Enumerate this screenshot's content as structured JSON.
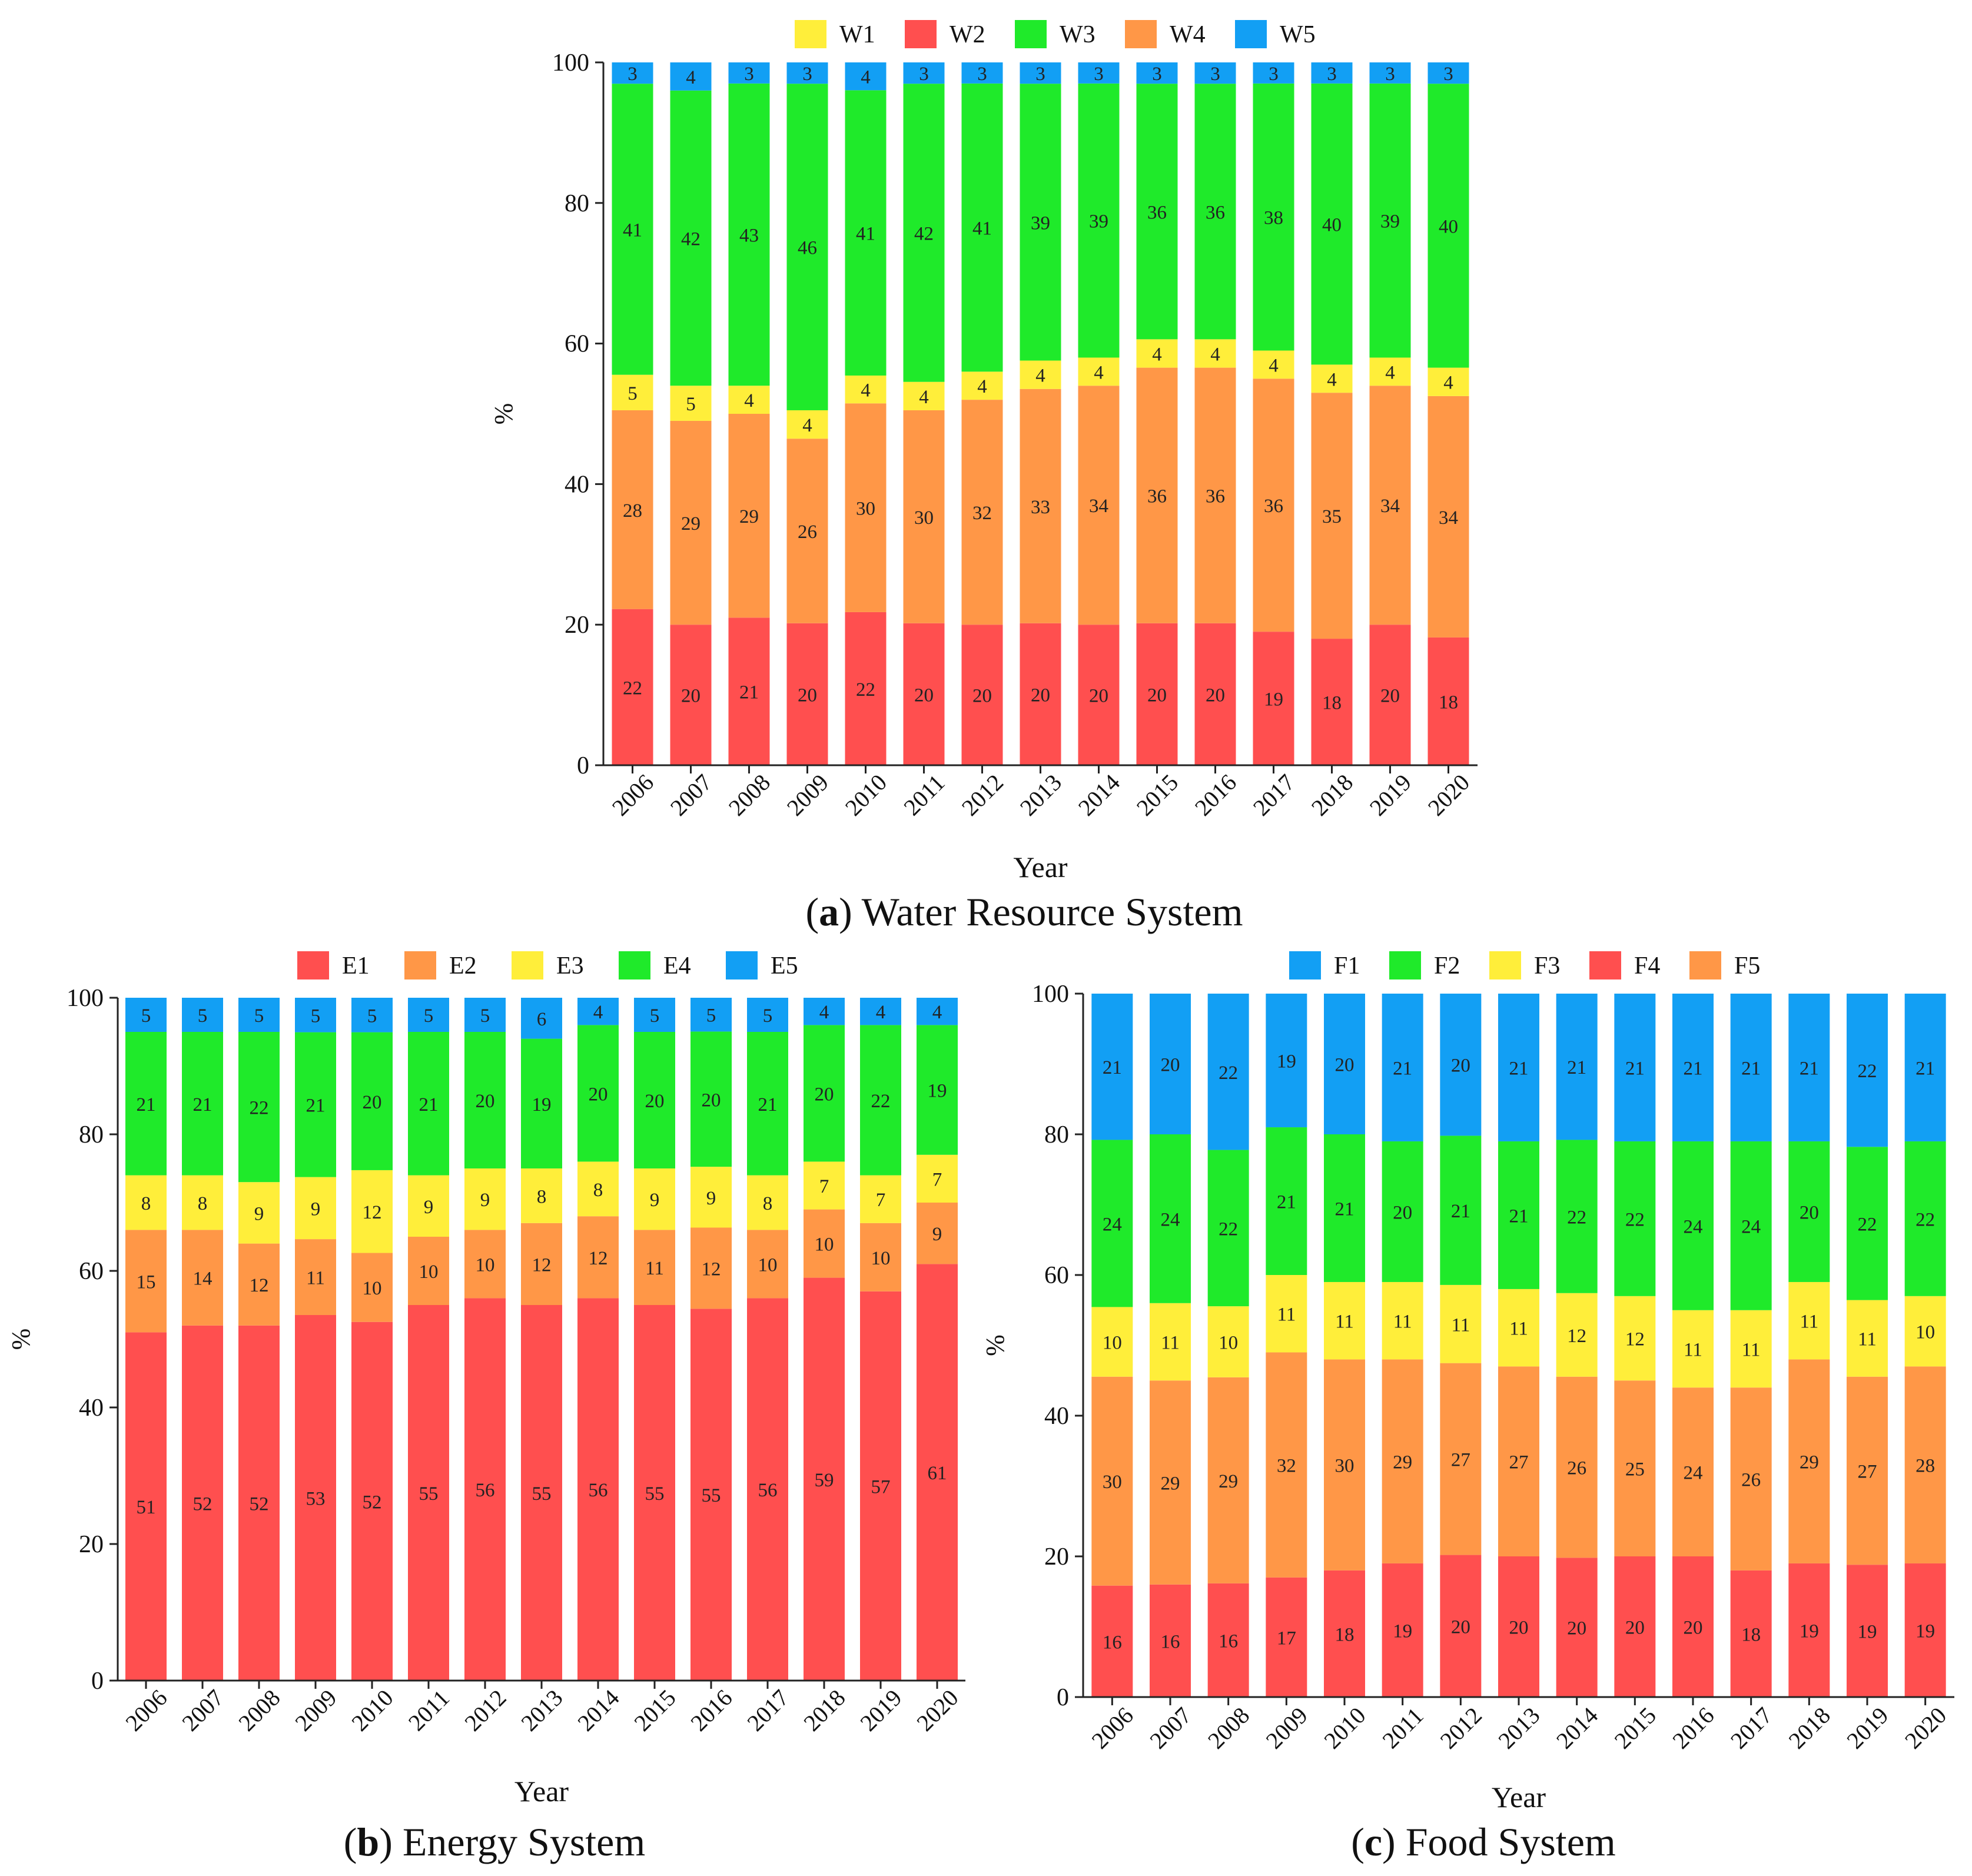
{
  "colors": {
    "red": "#FF4F4F",
    "orange": "#FF9747",
    "yellow": "#FFEE3A",
    "green": "#1FEA2A",
    "blue": "#129FF4"
  },
  "captions": {
    "a": {
      "letter": "a",
      "text": " Water Resource System"
    },
    "b": {
      "letter": "b",
      "text": " Energy System"
    },
    "c": {
      "letter": "c",
      "text": " Food System"
    }
  },
  "chart_data": [
    {
      "type": "bar",
      "stacked": true,
      "title": "(a) Water Resource System",
      "xlabel": "Year",
      "ylabel": "%",
      "ylim": [
        0,
        100
      ],
      "yticks": [
        0,
        20,
        40,
        60,
        80,
        100
      ],
      "categories": [
        "2006",
        "2007",
        "2008",
        "2009",
        "2010",
        "2011",
        "2012",
        "2013",
        "2014",
        "2015",
        "2016",
        "2017",
        "2018",
        "2019",
        "2020"
      ],
      "legend": [
        "W1",
        "W2",
        "W3",
        "W4",
        "W5"
      ],
      "legend_colors": [
        "#FFEE3A",
        "#FF4F4F",
        "#1FEA2A",
        "#FF9747",
        "#129FF4"
      ],
      "series": [
        {
          "name": "W2",
          "color": "#FF4F4F",
          "values": [
            22,
            20,
            21,
            20,
            22,
            20,
            20,
            20,
            20,
            20,
            20,
            19,
            18,
            20,
            18
          ]
        },
        {
          "name": "W4",
          "color": "#FF9747",
          "values": [
            28,
            29,
            29,
            26,
            30,
            30,
            32,
            33,
            34,
            36,
            36,
            36,
            35,
            34,
            34
          ]
        },
        {
          "name": "W1",
          "color": "#FFEE3A",
          "values": [
            5,
            5,
            4,
            4,
            4,
            4,
            4,
            4,
            4,
            4,
            4,
            4,
            4,
            4,
            4
          ]
        },
        {
          "name": "W3",
          "color": "#1FEA2A",
          "values": [
            41,
            42,
            43,
            46,
            41,
            42,
            41,
            39,
            39,
            36,
            36,
            38,
            40,
            39,
            40
          ]
        },
        {
          "name": "W5",
          "color": "#129FF4",
          "values": [
            3,
            4,
            3,
            3,
            4,
            3,
            3,
            3,
            3,
            3,
            3,
            3,
            3,
            3,
            3
          ]
        }
      ]
    },
    {
      "type": "bar",
      "stacked": true,
      "title": "(b) Energy System",
      "xlabel": "Year",
      "ylabel": "%",
      "ylim": [
        0,
        100
      ],
      "yticks": [
        0,
        20,
        40,
        60,
        80,
        100
      ],
      "categories": [
        "2006",
        "2007",
        "2008",
        "2009",
        "2010",
        "2011",
        "2012",
        "2013",
        "2014",
        "2015",
        "2016",
        "2017",
        "2018",
        "2019",
        "2020"
      ],
      "legend": [
        "E1",
        "E2",
        "E3",
        "E4",
        "E5"
      ],
      "legend_colors": [
        "#FF4F4F",
        "#FF9747",
        "#FFEE3A",
        "#1FEA2A",
        "#129FF4"
      ],
      "series": [
        {
          "name": "E1",
          "color": "#FF4F4F",
          "values": [
            51,
            52,
            52,
            53,
            52,
            55,
            56,
            55,
            56,
            55,
            55,
            56,
            59,
            57,
            61
          ]
        },
        {
          "name": "E2",
          "color": "#FF9747",
          "values": [
            15,
            14,
            12,
            11,
            10,
            10,
            10,
            12,
            12,
            11,
            12,
            10,
            10,
            10,
            9
          ]
        },
        {
          "name": "E3",
          "color": "#FFEE3A",
          "values": [
            8,
            8,
            9,
            9,
            12,
            9,
            9,
            8,
            8,
            9,
            9,
            8,
            7,
            7,
            7
          ]
        },
        {
          "name": "E4",
          "color": "#1FEA2A",
          "values": [
            21,
            21,
            22,
            21,
            20,
            21,
            20,
            19,
            20,
            20,
            20,
            21,
            20,
            22,
            19
          ]
        },
        {
          "name": "E5",
          "color": "#129FF4",
          "values": [
            5,
            5,
            5,
            5,
            5,
            5,
            5,
            6,
            4,
            5,
            5,
            5,
            4,
            4,
            4
          ]
        }
      ]
    },
    {
      "type": "bar",
      "stacked": true,
      "title": "(c) Food System",
      "xlabel": "Year",
      "ylabel": "%",
      "ylim": [
        0,
        100
      ],
      "yticks": [
        0,
        20,
        40,
        60,
        80,
        100
      ],
      "categories": [
        "2006",
        "2007",
        "2008",
        "2009",
        "2010",
        "2011",
        "2012",
        "2013",
        "2014",
        "2015",
        "2016",
        "2017",
        "2018",
        "2019",
        "2020"
      ],
      "legend": [
        "F1",
        "F2",
        "F3",
        "F4",
        "F5"
      ],
      "legend_colors": [
        "#129FF4",
        "#1FEA2A",
        "#FFEE3A",
        "#FF4F4F",
        "#FF9747"
      ],
      "series": [
        {
          "name": "F4",
          "color": "#FF4F4F",
          "values": [
            16,
            16,
            16,
            17,
            18,
            19,
            20,
            20,
            20,
            20,
            20,
            18,
            19,
            19,
            19
          ]
        },
        {
          "name": "F5",
          "color": "#FF9747",
          "values": [
            30,
            29,
            29,
            32,
            30,
            29,
            27,
            27,
            26,
            25,
            24,
            26,
            29,
            27,
            28
          ]
        },
        {
          "name": "F3",
          "color": "#FFEE3A",
          "values": [
            10,
            11,
            10,
            11,
            11,
            11,
            11,
            11,
            12,
            12,
            11,
            11,
            11,
            11,
            10
          ]
        },
        {
          "name": "F2",
          "color": "#1FEA2A",
          "values": [
            24,
            24,
            22,
            21,
            21,
            20,
            21,
            21,
            22,
            22,
            24,
            24,
            20,
            22,
            22
          ]
        },
        {
          "name": "F1",
          "color": "#129FF4",
          "values": [
            21,
            20,
            22,
            19,
            20,
            21,
            20,
            21,
            21,
            21,
            21,
            21,
            21,
            22,
            21
          ]
        }
      ]
    }
  ]
}
